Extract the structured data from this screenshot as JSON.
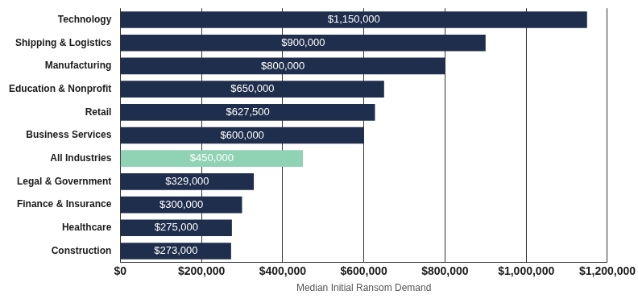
{
  "chart_data": {
    "type": "bar",
    "orientation": "horizontal",
    "xlabel": "Median Initial Ransom Demand",
    "categories": [
      "Technology",
      "Shipping & Logistics",
      "Manufacturing",
      "Education & Nonprofit",
      "Retail",
      "Business Services",
      "All Industries",
      "Legal & Government",
      "Finance & Insurance",
      "Healthcare",
      "Construction"
    ],
    "values": [
      1150000,
      900000,
      800000,
      650000,
      627500,
      600000,
      450000,
      329000,
      300000,
      275000,
      273000
    ],
    "value_labels": [
      "$1,150,000",
      "$900,000",
      "$800,000",
      "$650,000",
      "$627,500",
      "$600,000",
      "$450,000",
      "$329,000",
      "$300,000",
      "$275,000",
      "$273,000"
    ],
    "colors": [
      "#1f2e4c",
      "#1f2e4c",
      "#1f2e4c",
      "#1f2e4c",
      "#1f2e4c",
      "#1f2e4c",
      "#8fd3b4",
      "#1f2e4c",
      "#1f2e4c",
      "#1f2e4c",
      "#1f2e4c"
    ],
    "xlim": [
      0,
      1200000
    ],
    "xticks": [
      {
        "value": 0,
        "label": "$0"
      },
      {
        "value": 200000,
        "label": "$200,000"
      },
      {
        "value": 400000,
        "label": "$400,000"
      },
      {
        "value": 600000,
        "label": "$600,000"
      },
      {
        "value": 800000,
        "label": "$800,000"
      },
      {
        "value": 1000000,
        "label": "$1,000,000"
      },
      {
        "value": 1200000,
        "label": "$1,200,000"
      }
    ],
    "grid": true,
    "data_labels": true
  }
}
